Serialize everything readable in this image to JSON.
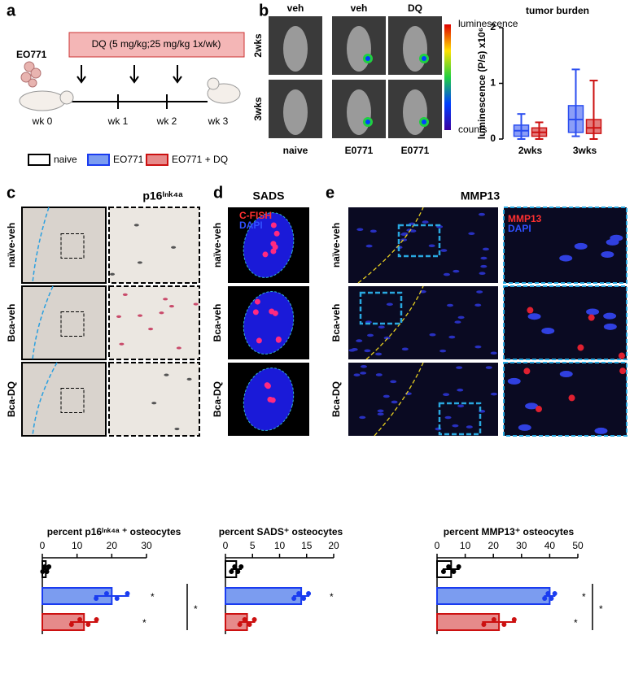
{
  "panel_a": {
    "label": "a",
    "cell_line": "EO771",
    "treatment": "DQ (5 mg/kg;25 mg/kg 1x/wk)",
    "timepoints": [
      "wk 0",
      "wk 1",
      "wk 2",
      "wk 3"
    ],
    "legend": [
      {
        "name": "naive",
        "color": "#ffffff"
      },
      {
        "name": "EO771",
        "color": "#7b9cf0"
      },
      {
        "name": "EO771 + DQ",
        "color": "#e68a8a"
      }
    ]
  },
  "panel_b": {
    "label": "b",
    "columns": [
      "veh",
      "veh",
      "DQ"
    ],
    "rows": [
      "2wks",
      "3wks"
    ],
    "groups": [
      "naive",
      "E0771",
      "E0771"
    ],
    "colorbar_title": "luminescence",
    "colorbar_unit": "counts"
  },
  "panel_c": {
    "label": "c",
    "title": "p16ᴵⁿᵏ⁴ᵃ",
    "rows": [
      "naïve-veh",
      "Bca-veh",
      "Bca-DQ"
    ]
  },
  "panel_d": {
    "label": "d",
    "title": "SADS",
    "rows": [
      "naïve-veh",
      "Bca-veh",
      "Bca-DQ"
    ],
    "channels": [
      "C-FISH",
      "DAPI"
    ]
  },
  "panel_e": {
    "label": "e",
    "title": "MMP13",
    "rows": [
      "naïve-veh",
      "Bca-veh",
      "Bca-DQ"
    ],
    "channels": [
      "MMP13",
      "DAPI"
    ]
  },
  "chart_data": [
    {
      "type": "box",
      "title": "tumor burden",
      "y_label": "luminescence (P/s) x10⁶",
      "categories": [
        "2wks",
        "3wks"
      ],
      "ylim": [
        0,
        2
      ],
      "yticks": [
        0,
        1,
        2
      ],
      "series": [
        {
          "color": "#2b4ef0",
          "min": [
            0.0,
            0.05
          ],
          "q1": [
            0.05,
            0.12
          ],
          "median": [
            0.15,
            0.35
          ],
          "q3": [
            0.25,
            0.6
          ],
          "max": [
            0.45,
            1.25
          ]
        },
        {
          "color": "#cc1111",
          "min": [
            0.0,
            0.0
          ],
          "q1": [
            0.05,
            0.1
          ],
          "median": [
            0.12,
            0.2
          ],
          "q3": [
            0.2,
            0.35
          ],
          "max": [
            0.3,
            1.05
          ]
        }
      ]
    },
    {
      "type": "bar",
      "orientation": "horizontal",
      "title": "percent p16ᴵⁿᵏ⁴ᵃ ⁺ osteocytes",
      "categories": [
        null,
        null,
        null
      ],
      "values": [
        1,
        20,
        12
      ],
      "errors": [
        1,
        5,
        4
      ],
      "colors": [
        "#ffffff",
        "#7b9cf0",
        "#e68a8a"
      ],
      "edge_colors": [
        "#000000",
        "#1a3cf0",
        "#cc1111"
      ],
      "xlim": [
        0,
        30
      ],
      "xticks": [
        0,
        10,
        20,
        30
      ],
      "annotations": [
        "*",
        "*",
        "*"
      ]
    },
    {
      "type": "bar",
      "orientation": "horizontal",
      "title": "percent SADS⁺ osteocytes",
      "categories": [
        null,
        null,
        null
      ],
      "values": [
        2,
        14,
        4
      ],
      "errors": [
        1,
        1.5,
        1.5
      ],
      "colors": [
        "#ffffff",
        "#7b9cf0",
        "#e68a8a"
      ],
      "edge_colors": [
        "#000000",
        "#1a3cf0",
        "#cc1111"
      ],
      "xlim": [
        0,
        20
      ],
      "xticks": [
        0,
        5,
        10,
        15,
        20
      ],
      "annotations": [
        "*"
      ]
    },
    {
      "type": "bar",
      "orientation": "horizontal",
      "title": "percent MMP13⁺ osteocytes",
      "categories": [
        null,
        null,
        null
      ],
      "values": [
        5,
        40,
        22
      ],
      "errors": [
        3,
        2,
        6
      ],
      "colors": [
        "#ffffff",
        "#7b9cf0",
        "#e68a8a"
      ],
      "edge_colors": [
        "#000000",
        "#1a3cf0",
        "#cc1111"
      ],
      "xlim": [
        0,
        50
      ],
      "xticks": [
        0,
        10,
        20,
        30,
        40,
        50
      ],
      "annotations": [
        "*",
        "*",
        "*"
      ]
    }
  ]
}
